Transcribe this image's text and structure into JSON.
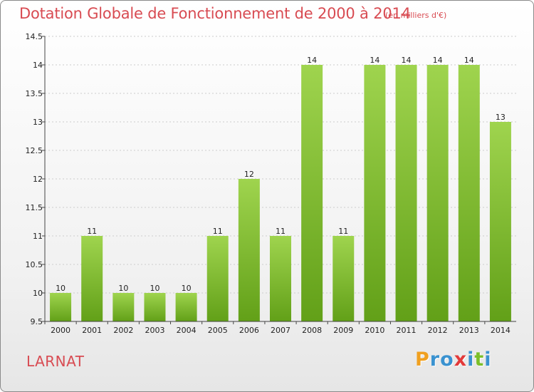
{
  "chart_data": {
    "type": "bar",
    "title": "Dotation Globale de Fonctionnement de 2000 à 2014",
    "unit_label": "(en milliers d'€)",
    "xlabel": "",
    "ylabel": "",
    "categories": [
      "2000",
      "2001",
      "2002",
      "2003",
      "2004",
      "2005",
      "2006",
      "2007",
      "2008",
      "2009",
      "2010",
      "2011",
      "2012",
      "2013",
      "2014"
    ],
    "values": [
      10,
      11,
      10,
      10,
      10,
      11,
      12,
      11,
      14,
      11,
      14,
      14,
      14,
      14,
      13
    ],
    "data_labels": [
      "10",
      "11",
      "10",
      "10",
      "10",
      "11",
      "12",
      "11",
      "14",
      "11",
      "14",
      "14",
      "14",
      "14",
      "13"
    ],
    "ylim": [
      9.5,
      14.5
    ],
    "yticks": [
      9.5,
      10,
      10.5,
      11,
      11.5,
      12,
      12.5,
      13,
      13.5,
      14,
      14.5
    ],
    "ytick_labels": [
      "9.5",
      "10",
      "10.5",
      "11",
      "11.5",
      "12",
      "12.5",
      "13",
      "13.5",
      "14",
      "14.5"
    ],
    "grid": true,
    "legend": "none",
    "bar_color_top": "#9fd44e",
    "bar_color_bottom": "#62a018"
  },
  "commune": "LARNAT",
  "brand": {
    "letters": [
      "P",
      "r",
      "o",
      "x",
      "i",
      "t",
      "i"
    ],
    "colors": [
      "#f0a020",
      "#3a92d0",
      "#3a92d0",
      "#e23a3a",
      "#3a92d0",
      "#7bbf2a",
      "#3a92d0"
    ]
  },
  "colors": {
    "accent": "#d84b52",
    "axis": "#444444",
    "grid": "#cccccc"
  }
}
